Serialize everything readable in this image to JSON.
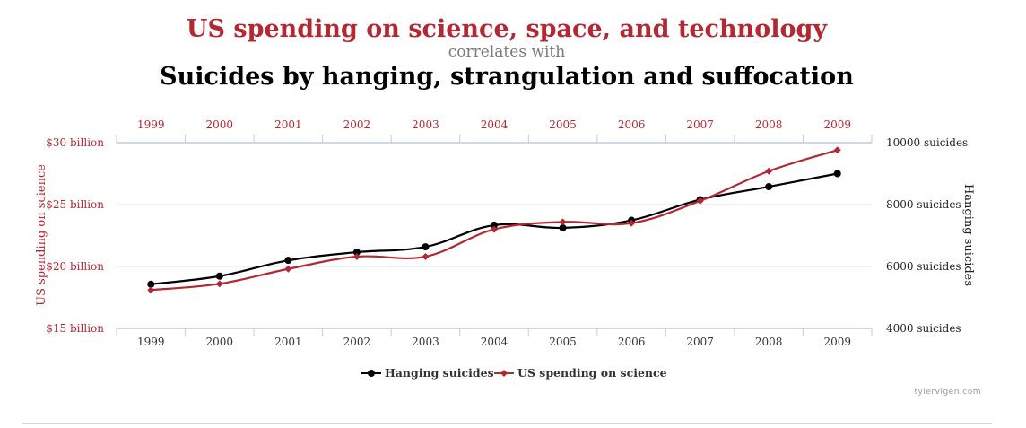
{
  "header": {
    "title_primary": "US spending on science, space, and technology",
    "title_connector": "correlates with",
    "title_secondary": "Suicides by hanging, strangulation and suffocation"
  },
  "credit": "tylervigen.com",
  "colors": {
    "science": "#b22833",
    "hanging": "#000000",
    "grid": "#d8e0e8",
    "axis": "#c0ccd9",
    "connector": "#7a7a7a"
  },
  "chart_data": {
    "type": "line",
    "categories": [
      "1999",
      "2000",
      "2001",
      "2002",
      "2003",
      "2004",
      "2005",
      "2006",
      "2007",
      "2008",
      "2009"
    ],
    "y_left": {
      "label": "US spending on science",
      "min": 15,
      "max": 30,
      "ticks": [
        15,
        20,
        25,
        30
      ],
      "tick_labels": [
        "$15 billion",
        "$20 billion",
        "$25 billion",
        "$30 billion"
      ]
    },
    "y_right": {
      "label": "Hanging suicides",
      "min": 4000,
      "max": 10000,
      "ticks": [
        4000,
        6000,
        8000,
        10000
      ],
      "tick_labels": [
        "4000 suicides",
        "6000 suicides",
        "8000 suicides",
        "10000 suicides"
      ]
    },
    "series": [
      {
        "name": "Hanging suicides",
        "axis": "right",
        "marker": "circle",
        "values": [
          5427,
          5688,
          6198,
          6462,
          6635,
          7336,
          7248,
          7491,
          8161,
          8578,
          9000
        ]
      },
      {
        "name": "US spending on science",
        "axis": "left",
        "marker": "diamond",
        "values": [
          18.1,
          18.6,
          19.8,
          20.8,
          20.8,
          23.0,
          23.6,
          23.5,
          25.3,
          27.7,
          29.4
        ]
      }
    ],
    "legend_position": "bottom-center",
    "grid": true
  }
}
